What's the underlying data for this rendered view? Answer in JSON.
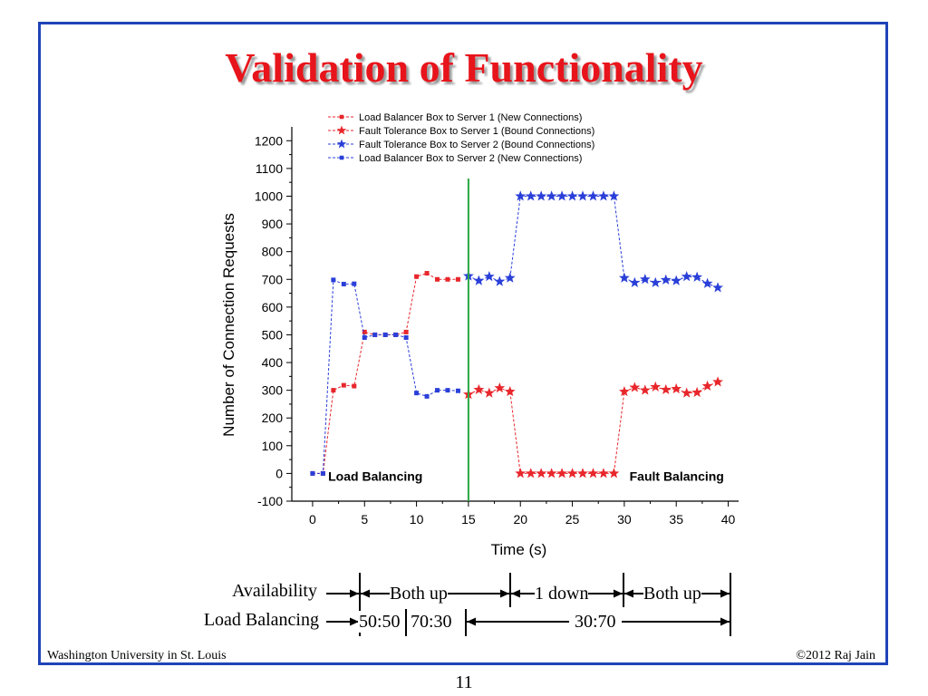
{
  "slide": {
    "title": "Validation of Functionality",
    "footer_left": "Washington University in St. Louis",
    "footer_right": "©2012 Raj Jain",
    "page_number": "11",
    "frame_color": "#1f43b8",
    "title_color": "#e8141b"
  },
  "chart_data": {
    "type": "line",
    "xlabel": "Time (s)",
    "ylabel": "Number of Connection Requests",
    "xlim": [
      -2,
      41
    ],
    "ylim": [
      -100,
      1250
    ],
    "xticks": [
      0,
      5,
      10,
      15,
      20,
      25,
      30,
      35,
      40
    ],
    "yticks": [
      -100,
      0,
      100,
      200,
      300,
      400,
      500,
      600,
      700,
      800,
      900,
      1000,
      1100,
      1200
    ],
    "legend_position": "top",
    "divider_x": 15,
    "divider_color": "#2aa845",
    "annotations": [
      {
        "text": "Load Balancing",
        "x": 1.5,
        "y": -10
      },
      {
        "text": "Fault Balancing",
        "x": 30.5,
        "y": -10
      }
    ],
    "series": [
      {
        "name": "Load Balancer Box to Server 1 (New Connections)",
        "color": "#e8262b",
        "marker": "square",
        "x": [
          0,
          1,
          2,
          3,
          4,
          5,
          6,
          7,
          8,
          9,
          10,
          11,
          12,
          13,
          14
        ],
        "values": [
          0,
          0,
          300,
          318,
          315,
          510,
          500,
          500,
          500,
          510,
          710,
          722,
          700,
          700,
          700
        ]
      },
      {
        "name": "Fault Tolerance Box to Server 1 (Bound Connections)",
        "color": "#e8262b",
        "marker": "star",
        "x": [
          15,
          16,
          17,
          18,
          19,
          20,
          21,
          22,
          23,
          24,
          25,
          26,
          27,
          28,
          29,
          30,
          31,
          32,
          33,
          34,
          35,
          36,
          37,
          38,
          39
        ],
        "values": [
          285,
          302,
          290,
          308,
          295,
          0,
          0,
          0,
          0,
          0,
          0,
          0,
          0,
          0,
          0,
          295,
          310,
          300,
          312,
          302,
          305,
          290,
          292,
          315,
          330
        ]
      },
      {
        "name": "Fault Tolerance Box to Server 2 (Bound Connections)",
        "color": "#2a3fd8",
        "marker": "star",
        "x": [
          15,
          16,
          17,
          18,
          19,
          20,
          21,
          22,
          23,
          24,
          25,
          26,
          27,
          28,
          29,
          30,
          31,
          32,
          33,
          34,
          35,
          36,
          37,
          38,
          39
        ],
        "values": [
          712,
          695,
          710,
          692,
          705,
          1000,
          1000,
          1000,
          1000,
          1000,
          1000,
          1000,
          1000,
          1000,
          1000,
          705,
          688,
          700,
          688,
          698,
          695,
          710,
          708,
          685,
          670
        ]
      },
      {
        "name": "Load Balancer Box to Server 2 (New Connections)",
        "color": "#2a3fd8",
        "marker": "square",
        "x": [
          0,
          1,
          2,
          3,
          4,
          5,
          6,
          7,
          8,
          9,
          10,
          11,
          12,
          13,
          14
        ],
        "values": [
          0,
          0,
          698,
          683,
          684,
          490,
          500,
          500,
          500,
          490,
          290,
          278,
          300,
          300,
          298
        ]
      }
    ]
  },
  "timeline": {
    "availability_label": "Availability",
    "load_balancing_label": "Load Balancing",
    "segments": [
      {
        "text": "Both up"
      },
      {
        "text": "1 down"
      },
      {
        "text": "Both up"
      }
    ],
    "ratios": [
      {
        "text": "50:50"
      },
      {
        "text": "70:30"
      },
      {
        "text": "30:70"
      }
    ]
  }
}
